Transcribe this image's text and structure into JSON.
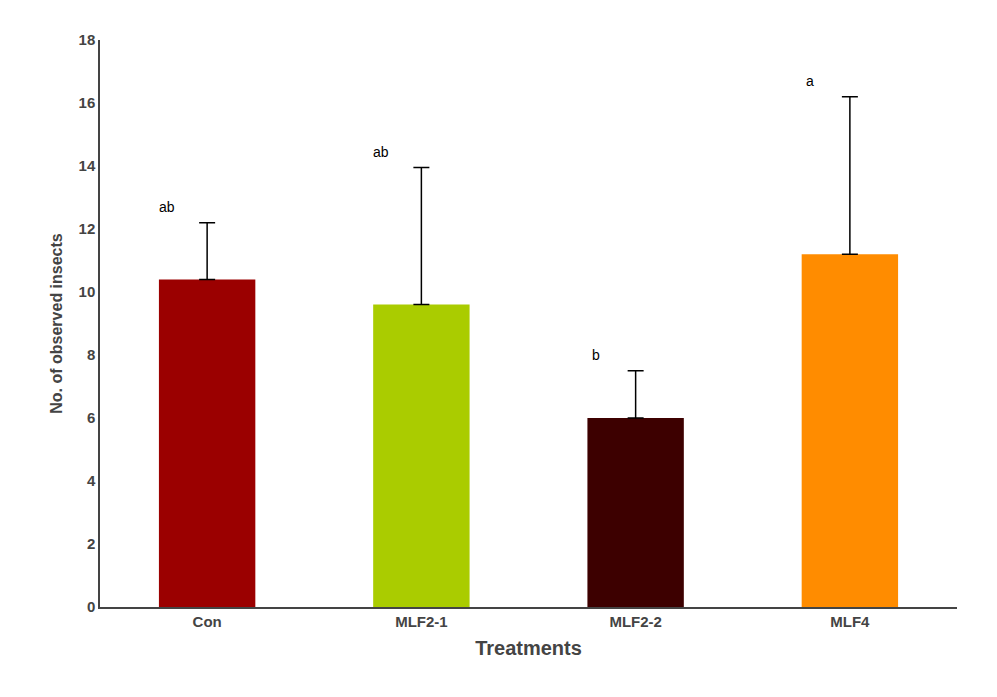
{
  "chart_data": {
    "type": "bar",
    "categories": [
      "Con",
      "MLF2-1",
      "MLF2-2",
      "MLF4"
    ],
    "values": [
      10.4,
      9.6,
      6.0,
      11.2
    ],
    "errors_upper": [
      1.8,
      4.35,
      1.5,
      5.0
    ],
    "colors": [
      "#9B0000",
      "#AACC00",
      "#3D0000",
      "#FF8C00"
    ],
    "sig_labels": [
      "ab",
      "ab",
      "b",
      "a"
    ],
    "xlabel": "Treatments",
    "ylabel": "No. of observed insects",
    "ylim": [
      0,
      18
    ],
    "yticks": [
      0,
      2,
      4,
      6,
      8,
      10,
      12,
      14,
      16,
      18
    ],
    "grid": false
  }
}
